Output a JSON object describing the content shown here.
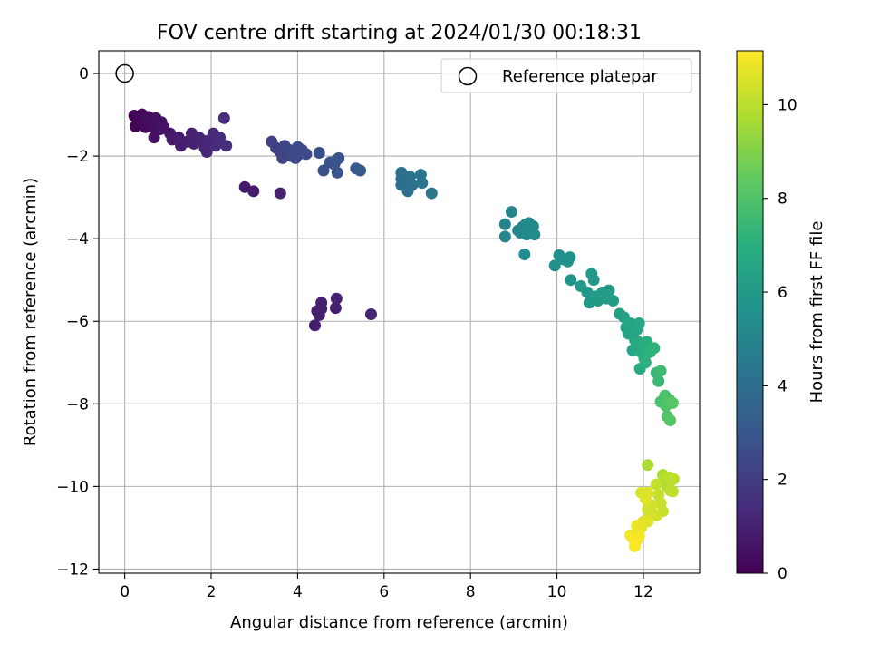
{
  "chart_data": {
    "type": "scatter",
    "title": "FOV centre drift starting at 2024/01/30 00:18:31",
    "xlabel": "Angular distance from reference (arcmin)",
    "ylabel": "Rotation from reference (arcmin)",
    "xlim": [
      -0.6,
      13.3
    ],
    "ylim": [
      -12.1,
      0.55
    ],
    "xticks": [
      0,
      2,
      4,
      6,
      8,
      10,
      12
    ],
    "yticks": [
      0,
      -2,
      -4,
      -6,
      -8,
      -10,
      -12
    ],
    "xtick_labels": [
      "0",
      "2",
      "4",
      "6",
      "8",
      "10",
      "12"
    ],
    "ytick_labels": [
      "0",
      "−2",
      "−4",
      "−6",
      "−8",
      "−10",
      "−12"
    ],
    "grid": true,
    "legend": {
      "placement": "top-right",
      "entries": [
        "Reference platepar"
      ]
    },
    "reference_point": {
      "x": 0,
      "y": 0,
      "label": "Reference platepar"
    },
    "colorbar": {
      "label": "Hours from first FF file",
      "colormap": "viridis",
      "range": [
        0,
        11.15
      ],
      "ticks": [
        0,
        2,
        4,
        6,
        8,
        10
      ],
      "tick_labels": [
        "0",
        "2",
        "4",
        "6",
        "8",
        "10"
      ]
    },
    "points": [
      [
        0.22,
        -1.02,
        0.05
      ],
      [
        0.28,
        -1.08,
        0.1
      ],
      [
        0.25,
        -1.28,
        0.12
      ],
      [
        0.35,
        -1.05,
        0.15
      ],
      [
        0.4,
        -0.99,
        0.2
      ],
      [
        0.45,
        -1.15,
        0.25
      ],
      [
        0.48,
        -1.3,
        0.3
      ],
      [
        0.55,
        -1.05,
        0.33
      ],
      [
        0.58,
        -1.2,
        0.36
      ],
      [
        0.62,
        -1.1,
        0.4
      ],
      [
        0.65,
        -1.28,
        0.42
      ],
      [
        0.68,
        -1.55,
        0.45
      ],
      [
        0.72,
        -1.08,
        0.48
      ],
      [
        0.78,
        -1.2,
        0.5
      ],
      [
        0.82,
        -1.35,
        0.52
      ],
      [
        0.85,
        -1.18,
        0.55
      ],
      [
        0.9,
        -1.3,
        0.58
      ],
      [
        1.05,
        -1.45,
        0.7
      ],
      [
        1.1,
        -1.6,
        0.75
      ],
      [
        1.25,
        -1.55,
        0.85
      ],
      [
        1.3,
        -1.75,
        0.9
      ],
      [
        1.45,
        -1.65,
        0.95
      ],
      [
        1.55,
        -1.45,
        1.0
      ],
      [
        1.6,
        -1.7,
        1.05
      ],
      [
        1.72,
        -1.55,
        1.1
      ],
      [
        1.8,
        -1.62,
        1.15
      ],
      [
        1.85,
        -1.8,
        1.2
      ],
      [
        1.9,
        -1.9,
        1.22
      ],
      [
        1.98,
        -1.6,
        1.25
      ],
      [
        2.05,
        -1.45,
        1.3
      ],
      [
        2.1,
        -1.75,
        1.35
      ],
      [
        2.2,
        -1.55,
        1.4
      ],
      [
        2.3,
        -1.08,
        1.45
      ],
      [
        2.35,
        -1.75,
        1.5
      ],
      [
        2.78,
        -2.75,
        0.75
      ],
      [
        2.98,
        -2.85,
        0.85
      ],
      [
        3.6,
        -2.9,
        1.05
      ],
      [
        3.4,
        -1.65,
        2.1
      ],
      [
        3.5,
        -1.8,
        2.15
      ],
      [
        3.6,
        -1.9,
        2.2
      ],
      [
        3.65,
        -2.05,
        2.25
      ],
      [
        3.7,
        -1.75,
        2.3
      ],
      [
        3.8,
        -1.85,
        2.35
      ],
      [
        3.85,
        -2.0,
        2.4
      ],
      [
        3.95,
        -2.05,
        2.42
      ],
      [
        4.0,
        -1.78,
        2.45
      ],
      [
        4.05,
        -1.95,
        2.48
      ],
      [
        4.1,
        -1.85,
        2.5
      ],
      [
        4.2,
        -1.95,
        2.55
      ],
      [
        4.5,
        -1.92,
        2.65
      ],
      [
        4.6,
        -2.35,
        2.7
      ],
      [
        4.75,
        -2.15,
        2.78
      ],
      [
        4.85,
        -2.2,
        2.82
      ],
      [
        4.9,
        -2.1,
        2.85
      ],
      [
        4.92,
        -2.4,
        2.88
      ],
      [
        4.95,
        -2.05,
        2.9
      ],
      [
        5.35,
        -2.3,
        3.1
      ],
      [
        5.45,
        -2.35,
        3.15
      ],
      [
        4.4,
        -6.1,
        0.88
      ],
      [
        4.45,
        -5.75,
        0.9
      ],
      [
        4.5,
        -5.85,
        0.92
      ],
      [
        4.55,
        -5.55,
        0.94
      ],
      [
        4.55,
        -5.7,
        0.96
      ],
      [
        4.9,
        -5.45,
        1.0
      ],
      [
        4.88,
        -5.68,
        1.02
      ],
      [
        5.7,
        -5.83,
        1.15
      ],
      [
        6.4,
        -2.4,
        4.0
      ],
      [
        6.4,
        -2.55,
        4.02
      ],
      [
        6.4,
        -2.7,
        4.05
      ],
      [
        6.5,
        -2.62,
        4.08
      ],
      [
        6.55,
        -2.85,
        4.1
      ],
      [
        6.55,
        -2.55,
        4.12
      ],
      [
        6.6,
        -2.5,
        4.15
      ],
      [
        6.65,
        -2.7,
        4.18
      ],
      [
        6.85,
        -2.45,
        4.3
      ],
      [
        6.88,
        -2.65,
        4.32
      ],
      [
        7.1,
        -2.9,
        4.4
      ],
      [
        8.8,
        -3.65,
        5.0
      ],
      [
        8.8,
        -3.95,
        5.02
      ],
      [
        8.95,
        -3.35,
        5.05
      ],
      [
        9.1,
        -3.8,
        5.08
      ],
      [
        9.15,
        -3.85,
        5.1
      ],
      [
        9.2,
        -3.72,
        5.12
      ],
      [
        9.28,
        -3.65,
        5.15
      ],
      [
        9.32,
        -3.75,
        5.18
      ],
      [
        9.3,
        -3.9,
        5.2
      ],
      [
        9.35,
        -3.62,
        5.22
      ],
      [
        9.4,
        -3.85,
        5.25
      ],
      [
        9.45,
        -3.7,
        5.28
      ],
      [
        9.48,
        -3.9,
        5.3
      ],
      [
        9.25,
        -4.38,
        5.35
      ],
      [
        9.95,
        -4.65,
        5.5
      ],
      [
        10.05,
        -4.4,
        5.55
      ],
      [
        10.15,
        -4.5,
        5.6
      ],
      [
        10.25,
        -4.55,
        5.62
      ],
      [
        10.3,
        -4.45,
        5.65
      ],
      [
        10.32,
        -5.0,
        5.75
      ],
      [
        10.55,
        -5.15,
        5.85
      ],
      [
        10.7,
        -5.3,
        5.9
      ],
      [
        10.75,
        -5.55,
        5.92
      ],
      [
        10.8,
        -4.85,
        5.95
      ],
      [
        10.85,
        -5.0,
        5.97
      ],
      [
        10.9,
        -5.4,
        6.0
      ],
      [
        10.95,
        -5.5,
        6.02
      ],
      [
        11.05,
        -5.3,
        6.05
      ],
      [
        11.15,
        -5.45,
        6.1
      ],
      [
        11.2,
        -5.25,
        6.12
      ],
      [
        11.3,
        -5.5,
        6.15
      ],
      [
        11.45,
        -5.82,
        6.25
      ],
      [
        11.55,
        -5.9,
        6.3
      ],
      [
        11.6,
        -6.15,
        6.4
      ],
      [
        11.65,
        -6.3,
        6.45
      ],
      [
        11.7,
        -6.05,
        6.5
      ],
      [
        11.75,
        -6.7,
        6.55
      ],
      [
        11.8,
        -6.45,
        6.6
      ],
      [
        11.85,
        -6.2,
        6.65
      ],
      [
        11.9,
        -6.05,
        6.7
      ],
      [
        11.88,
        -6.5,
        6.72
      ],
      [
        11.92,
        -7.15,
        6.8
      ],
      [
        11.95,
        -6.75,
        6.85
      ],
      [
        12.0,
        -6.6,
        6.9
      ],
      [
        12.02,
        -6.9,
        6.95
      ],
      [
        12.08,
        -6.5,
        7.0
      ],
      [
        12.05,
        -7.0,
        7.05
      ],
      [
        12.15,
        -6.75,
        7.1
      ],
      [
        12.25,
        -6.65,
        7.2
      ],
      [
        12.3,
        -7.25,
        7.4
      ],
      [
        12.35,
        -7.45,
        7.5
      ],
      [
        12.4,
        -7.2,
        7.55
      ],
      [
        12.4,
        -7.95,
        7.8
      ],
      [
        12.5,
        -7.8,
        7.9
      ],
      [
        12.52,
        -8.05,
        7.95
      ],
      [
        12.55,
        -8.3,
        8.0
      ],
      [
        12.6,
        -7.9,
        8.05
      ],
      [
        12.62,
        -8.4,
        8.1
      ],
      [
        12.68,
        -7.98,
        8.15
      ],
      [
        12.1,
        -9.48,
        9.7
      ],
      [
        12.45,
        -9.72,
        9.8
      ],
      [
        12.5,
        -9.85,
        9.85
      ],
      [
        12.55,
        -10.0,
        9.9
      ],
      [
        12.6,
        -9.78,
        9.95
      ],
      [
        12.62,
        -10.1,
        9.98
      ],
      [
        12.65,
        -9.85,
        10.0
      ],
      [
        12.7,
        -9.82,
        10.02
      ],
      [
        12.68,
        -10.12,
        10.05
      ],
      [
        12.3,
        -9.95,
        10.1
      ],
      [
        12.35,
        -10.2,
        10.15
      ],
      [
        12.4,
        -10.4,
        10.2
      ],
      [
        12.45,
        -10.6,
        10.25
      ],
      [
        12.3,
        -10.7,
        10.3
      ],
      [
        12.2,
        -10.45,
        10.35
      ],
      [
        12.1,
        -10.55,
        10.4
      ],
      [
        12.15,
        -10.72,
        10.45
      ],
      [
        11.95,
        -10.15,
        10.5
      ],
      [
        12.1,
        -10.15,
        10.55
      ],
      [
        12.05,
        -10.3,
        10.6
      ],
      [
        12.1,
        -10.85,
        10.65
      ],
      [
        12.0,
        -10.85,
        10.7
      ],
      [
        11.95,
        -11.0,
        10.75
      ],
      [
        11.85,
        -10.95,
        10.8
      ],
      [
        11.8,
        -11.15,
        10.85
      ],
      [
        11.9,
        -11.2,
        10.9
      ],
      [
        11.7,
        -11.18,
        10.95
      ],
      [
        11.75,
        -11.25,
        11.0
      ],
      [
        11.85,
        -11.3,
        11.05
      ],
      [
        11.8,
        -11.45,
        11.1
      ]
    ]
  }
}
